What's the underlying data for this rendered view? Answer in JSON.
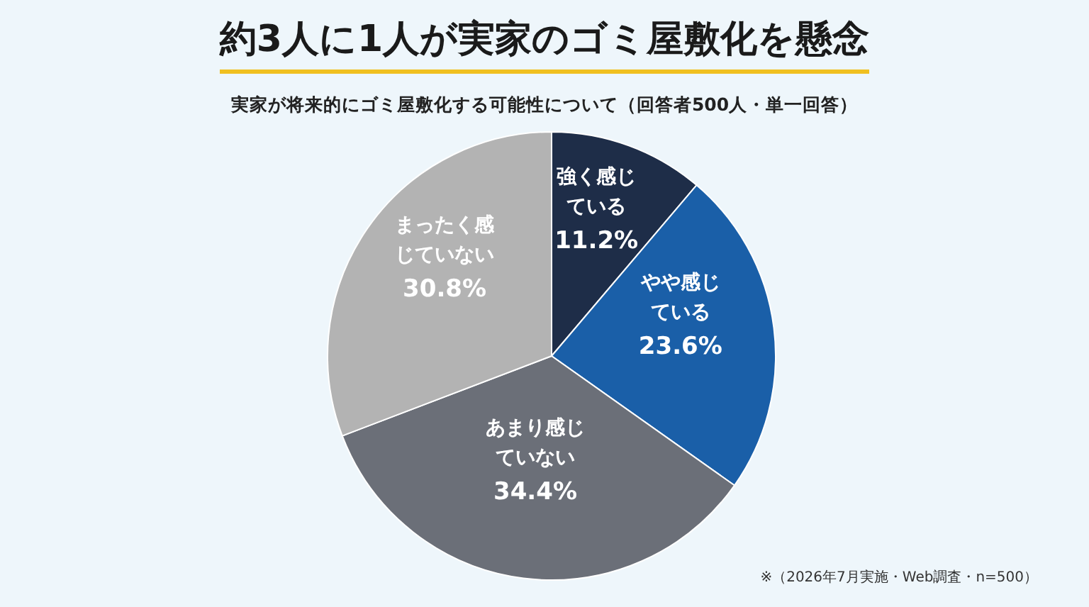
{
  "chart_data": {
    "type": "pie",
    "title": "約3人に1人が実家のゴミ屋敷化を懸念",
    "subtitle": "実家が将来的にゴミ屋敷化する可能性について（回答者500人・単一回答）",
    "categories": [
      "強く感じている",
      "やや感じている",
      "あまり感じていない",
      "まったく感じていない"
    ],
    "values": [
      11.2,
      23.6,
      34.4,
      30.8
    ],
    "value_labels": [
      "11.2%",
      "23.6%",
      "34.4%",
      "30.8%"
    ],
    "colors": [
      "#1e2d48",
      "#1a5fa8",
      "#6b6f78",
      "#b3b3b3"
    ],
    "annotations": [
      "※（2026年7月実施・Web調査・n=500）"
    ],
    "legend": false
  }
}
